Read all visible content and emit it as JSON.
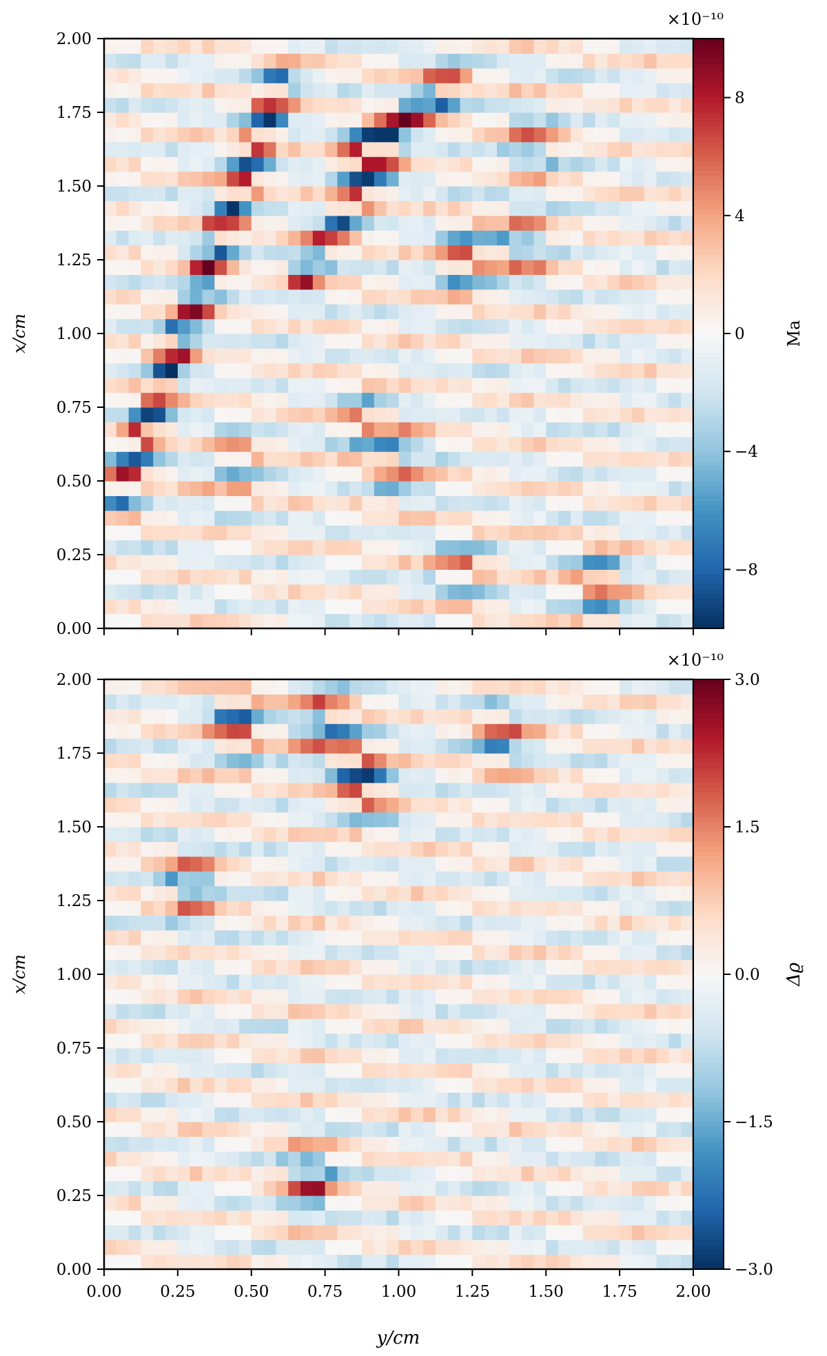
{
  "chart_data": [
    {
      "type": "heatmap",
      "xlabel": "",
      "ylabel": "x/cm",
      "xlim": [
        0.0,
        2.0
      ],
      "ylim": [
        0.0,
        2.0
      ],
      "x_ticks": [
        0.0,
        0.25,
        0.5,
        0.75,
        1.0,
        1.25,
        1.5,
        1.75,
        2.0
      ],
      "x_tick_labels_shown": false,
      "y_ticks": [
        "0.00",
        "0.25",
        "0.50",
        "0.75",
        "1.00",
        "1.25",
        "1.50",
        "1.75",
        "2.00"
      ],
      "grid": false,
      "colormap": "RdBu_r",
      "colorbar": {
        "label": "Ma",
        "scale_label": "×10⁻¹⁰",
        "range": [
          -10,
          10
        ],
        "ticks": [
          "−8",
          "−4",
          "0",
          "4",
          "8"
        ],
        "tick_values": [
          -8,
          -4,
          0,
          4,
          8
        ]
      },
      "grid_size": [
        48,
        40
      ],
      "features": [
        {
          "type": "diagonal_streak",
          "from": [
            0.05,
            0.45
          ],
          "to": [
            0.6,
            1.85
          ],
          "amplitude": 8
        },
        {
          "type": "diagonal_streak",
          "from": [
            0.68,
            1.2
          ],
          "to": [
            0.95,
            1.6
          ],
          "amplitude": 7
        },
        {
          "type": "diagonal_streak",
          "from": [
            0.85,
            1.6
          ],
          "to": [
            1.18,
            1.85
          ],
          "amplitude": 9
        },
        {
          "type": "blob",
          "center": [
            1.22,
            1.25
          ],
          "amplitude": 6
        },
        {
          "type": "blob",
          "center": [
            1.42,
            1.3
          ],
          "amplitude": 5
        },
        {
          "type": "blob",
          "center": [
            1.45,
            1.65
          ],
          "amplitude": 5
        },
        {
          "type": "blob",
          "center": [
            1.0,
            0.55
          ],
          "amplitude": 5
        },
        {
          "type": "blob",
          "center": [
            0.45,
            0.55
          ],
          "amplitude": 4
        },
        {
          "type": "blob",
          "center": [
            1.2,
            0.2
          ],
          "amplitude": 5
        },
        {
          "type": "blob",
          "center": [
            1.68,
            0.15
          ],
          "amplitude": 6
        },
        {
          "type": "blob",
          "center": [
            0.88,
            0.7
          ],
          "amplitude": 4
        }
      ]
    },
    {
      "type": "heatmap",
      "xlabel": "y/cm",
      "ylabel": "x/cm",
      "xlim": [
        0.0,
        2.0
      ],
      "ylim": [
        0.0,
        2.0
      ],
      "x_ticks": [
        "0.00",
        "0.25",
        "0.50",
        "0.75",
        "1.00",
        "1.25",
        "1.50",
        "1.75",
        "2.00"
      ],
      "y_ticks": [
        "0.00",
        "0.25",
        "0.50",
        "0.75",
        "1.00",
        "1.25",
        "1.50",
        "1.75",
        "2.00"
      ],
      "grid": false,
      "colormap": "RdBu_r",
      "colorbar": {
        "label": "Δϱ",
        "scale_label": "×10⁻¹⁰",
        "range": [
          -3.0,
          3.0
        ],
        "ticks": [
          "−3.0",
          "−1.5",
          "0.0",
          "1.5",
          "3.0"
        ],
        "tick_values": [
          -3.0,
          -1.5,
          0.0,
          1.5,
          3.0
        ]
      },
      "grid_size": [
        48,
        40
      ],
      "features": [
        {
          "type": "blob",
          "center": [
            0.88,
            1.65
          ],
          "amplitude": 2.5
        },
        {
          "type": "blob",
          "center": [
            0.45,
            1.85
          ],
          "amplitude": 2.0
        },
        {
          "type": "blob",
          "center": [
            0.75,
            1.85
          ],
          "amplitude": 2.0
        },
        {
          "type": "blob",
          "center": [
            0.3,
            1.3
          ],
          "amplitude": 1.8
        },
        {
          "type": "blob",
          "center": [
            0.7,
            0.3
          ],
          "amplitude": 2.0
        },
        {
          "type": "blob",
          "center": [
            1.35,
            1.8
          ],
          "amplitude": 1.8
        }
      ]
    }
  ]
}
